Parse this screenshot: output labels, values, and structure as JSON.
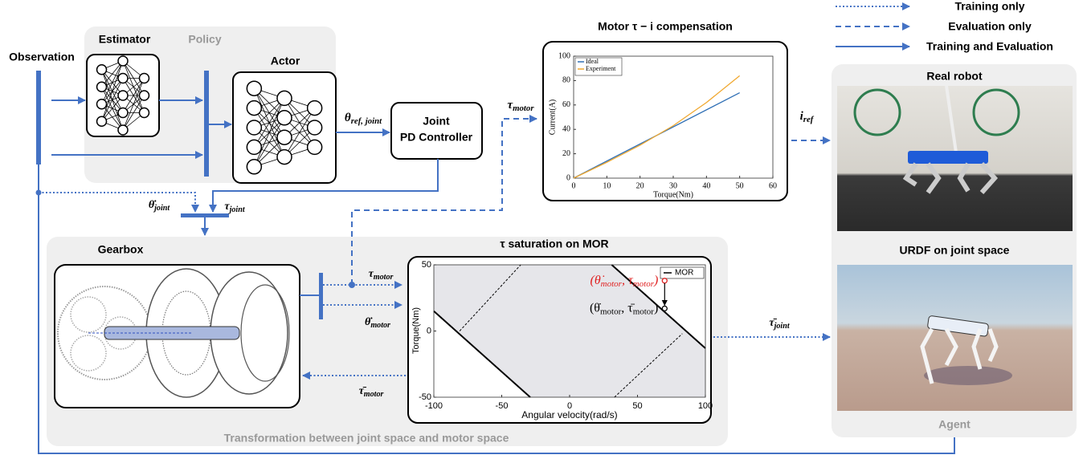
{
  "legend": [
    "Training only",
    "Evaluation only",
    "Training and Evaluation"
  ],
  "labels": {
    "observation": "Observation",
    "policy": "Policy",
    "estimator": "Estimator",
    "actor": "Actor",
    "pd_controller": [
      "Joint",
      "PD Controller"
    ],
    "real_robot": "Real robot",
    "urdf": "URDF on joint space",
    "agent": "Agent",
    "gearbox": "Gearbox",
    "transformation": "Transformation between joint space and motor space"
  },
  "symbols": {
    "theta_ref_joint": {
      "sym": "θ",
      "sub": "ref, joint"
    },
    "theta_dot_joint": {
      "sym": "θ̇",
      "sub": "joint"
    },
    "tau_joint": {
      "sym": "τ",
      "sub": "joint"
    },
    "tau_motor_top": {
      "sym": "τ",
      "sub": "motor"
    },
    "i_ref": {
      "sym": "i",
      "sub": "ref"
    },
    "tau_motor": {
      "sym": "τ",
      "sub": "motor"
    },
    "theta_dot_motor": {
      "sym": "θ̇",
      "sub": "motor"
    },
    "tau_bar_motor": {
      "sym": "τ̄",
      "sub": "motor"
    },
    "tau_bar_joint": {
      "sym": "τ̄",
      "sub": "joint"
    }
  },
  "motor_chart": {
    "type": "line",
    "title": "Motor τ − i compensation",
    "x_label": "Torque(Nm)",
    "y_label": "Current(A)",
    "xlim": [
      0,
      60
    ],
    "xticks": [
      0,
      10,
      20,
      30,
      40,
      50,
      60
    ],
    "ylim": [
      0,
      100
    ],
    "yticks": [
      0,
      20,
      40,
      60,
      80,
      100
    ],
    "series": [
      {
        "name": "Ideal",
        "color": "#2f6fb5",
        "x": [
          0,
          50
        ],
        "values": [
          0,
          70
        ]
      },
      {
        "name": "Experiment",
        "color": "#f0a830",
        "x": [
          0,
          10,
          20,
          30,
          40,
          50
        ],
        "values": [
          0,
          13,
          27,
          43,
          62,
          84
        ]
      }
    ]
  },
  "mor_chart": {
    "type": "region",
    "title": "τ saturation on MOR",
    "x_label": "Angular velocity(rad/s)",
    "y_label": "Torque(Nm)",
    "xlim": [
      -100,
      100
    ],
    "xticks": [
      -100,
      -50,
      0,
      50,
      100
    ],
    "ylim": [
      -50,
      50
    ],
    "yticks": [
      -50,
      0,
      50
    ],
    "region": {
      "name": "MOR",
      "color": "#e6e6ea",
      "x": [
        -100,
        31,
        100,
        100,
        -29,
        -100
      ],
      "values": [
        50,
        50,
        -13,
        -50,
        -50,
        15
      ]
    },
    "dashed": [
      {
        "x": [
          -81,
          -36
        ],
        "values": [
          0,
          50
        ]
      },
      {
        "x": [
          33,
          83
        ],
        "values": [
          -50,
          -2
        ]
      }
    ],
    "points": [
      {
        "color": "#e02020",
        "x": 70,
        "y": 38,
        "label": [
          "(θ̇",
          "motor",
          ", τ",
          "motor",
          ")"
        ]
      },
      {
        "color": "#000000",
        "x": 70,
        "y": 17,
        "label": [
          "(θ̇",
          "motor",
          ", τ̄",
          "motor",
          ")"
        ]
      }
    ]
  }
}
